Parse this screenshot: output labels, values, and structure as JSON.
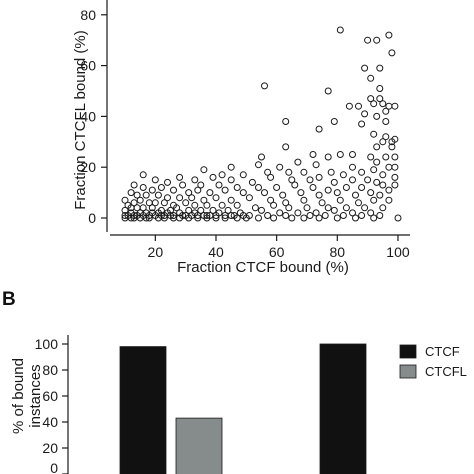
{
  "panel_b_letter": "B",
  "colors": {
    "ctcf": "#111111",
    "ctcfl": "#858c8b",
    "axis": "#1a1a1a",
    "marker_stroke": "#1a1a1a"
  },
  "chart_data": [
    {
      "type": "scatter",
      "xlabel": "Fraction CTCF bound (%)",
      "ylabel": "Fraction CTCFL bound (%)",
      "xlim": [
        8,
        100
      ],
      "ylim": [
        0,
        87
      ],
      "xticks": [
        20,
        40,
        60,
        80,
        100
      ],
      "yticks": [
        0,
        20,
        40,
        60,
        80
      ],
      "marker": "open-circle",
      "points": [
        [
          81,
          74
        ],
        [
          90,
          70
        ],
        [
          93,
          70
        ],
        [
          97,
          72
        ],
        [
          98,
          65
        ],
        [
          94,
          59
        ],
        [
          89,
          59
        ],
        [
          91,
          55
        ],
        [
          94,
          51
        ],
        [
          77,
          50
        ],
        [
          56,
          52
        ],
        [
          91,
          47
        ],
        [
          94,
          47
        ],
        [
          92,
          45
        ],
        [
          95,
          45
        ],
        [
          97,
          44
        ],
        [
          99,
          44
        ],
        [
          84,
          44
        ],
        [
          87,
          44
        ],
        [
          89,
          41
        ],
        [
          93,
          40
        ],
        [
          96,
          42
        ],
        [
          63,
          38
        ],
        [
          79,
          38
        ],
        [
          88,
          37
        ],
        [
          96,
          38
        ],
        [
          74,
          35
        ],
        [
          92,
          33
        ],
        [
          96,
          32
        ],
        [
          95,
          30
        ],
        [
          98,
          30
        ],
        [
          99,
          31
        ],
        [
          93,
          28
        ],
        [
          98,
          28
        ],
        [
          63,
          28
        ],
        [
          72,
          25
        ],
        [
          77,
          24
        ],
        [
          81,
          25
        ],
        [
          85,
          25
        ],
        [
          91,
          24
        ],
        [
          93,
          22
        ],
        [
          96,
          24
        ],
        [
          99,
          24
        ],
        [
          55,
          24
        ],
        [
          67,
          22
        ],
        [
          73,
          21
        ],
        [
          85,
          20
        ],
        [
          97,
          20
        ],
        [
          99,
          20
        ],
        [
          45,
          20
        ],
        [
          54,
          21
        ],
        [
          61,
          20
        ],
        [
          78,
          18
        ],
        [
          88,
          18
        ],
        [
          92,
          19
        ],
        [
          95,
          17
        ],
        [
          36,
          19
        ],
        [
          42,
          17
        ],
        [
          49,
          17
        ],
        [
          57,
          18
        ],
        [
          64,
          18
        ],
        [
          69,
          18
        ],
        [
          74,
          16
        ],
        [
          82,
          17
        ],
        [
          99,
          16
        ],
        [
          99,
          13
        ],
        [
          28,
          16
        ],
        [
          33,
          15
        ],
        [
          39,
          16
        ],
        [
          45,
          15
        ],
        [
          52,
          14
        ],
        [
          58,
          16
        ],
        [
          65,
          15
        ],
        [
          71,
          15
        ],
        [
          79,
          14
        ],
        [
          85,
          15
        ],
        [
          90,
          15
        ],
        [
          93,
          14
        ],
        [
          16,
          17
        ],
        [
          20,
          15
        ],
        [
          24,
          14
        ],
        [
          29,
          13
        ],
        [
          35,
          13
        ],
        [
          41,
          13
        ],
        [
          47,
          12
        ],
        [
          54,
          12
        ],
        [
          60,
          12
        ],
        [
          66,
          13
        ],
        [
          72,
          12
        ],
        [
          77,
          11
        ],
        [
          83,
          12
        ],
        [
          88,
          12
        ],
        [
          95,
          13
        ],
        [
          97,
          11
        ],
        [
          13,
          13
        ],
        [
          16,
          12
        ],
        [
          19,
          11
        ],
        [
          22,
          12
        ],
        [
          26,
          11
        ],
        [
          31,
          10
        ],
        [
          34,
          11
        ],
        [
          38,
          10
        ],
        [
          43,
          11
        ],
        [
          49,
          10
        ],
        [
          56,
          10
        ],
        [
          62,
          9
        ],
        [
          68,
          10
        ],
        [
          74,
          9
        ],
        [
          80,
          10
        ],
        [
          86,
          9
        ],
        [
          91,
          10
        ],
        [
          94,
          9
        ],
        [
          12,
          10
        ],
        [
          14,
          9
        ],
        [
          17,
          9
        ],
        [
          21,
          9
        ],
        [
          24,
          8
        ],
        [
          28,
          8
        ],
        [
          32,
          8
        ],
        [
          36,
          7
        ],
        [
          40,
          8
        ],
        [
          45,
          7
        ],
        [
          51,
          8
        ],
        [
          58,
          7
        ],
        [
          63,
          6
        ],
        [
          69,
          7
        ],
        [
          75,
          6
        ],
        [
          81,
          7
        ],
        [
          87,
          6
        ],
        [
          92,
          7
        ],
        [
          97,
          7
        ],
        [
          10,
          7
        ],
        [
          13,
          6
        ],
        [
          15,
          7
        ],
        [
          18,
          6
        ],
        [
          20,
          6
        ],
        [
          23,
          6
        ],
        [
          26,
          5
        ],
        [
          30,
          6
        ],
        [
          33,
          5
        ],
        [
          37,
          5
        ],
        [
          42,
          5
        ],
        [
          47,
          5
        ],
        [
          53,
          4
        ],
        [
          59,
          5
        ],
        [
          64,
          4
        ],
        [
          70,
          4
        ],
        [
          77,
          4
        ],
        [
          83,
          4
        ],
        [
          89,
          4
        ],
        [
          95,
          4
        ],
        [
          11,
          5
        ],
        [
          12,
          4
        ],
        [
          14,
          4
        ],
        [
          16,
          4
        ],
        [
          19,
          4
        ],
        [
          22,
          3
        ],
        [
          25,
          3
        ],
        [
          27,
          4
        ],
        [
          31,
          3
        ],
        [
          35,
          3
        ],
        [
          39,
          3
        ],
        [
          44,
          3
        ],
        [
          48,
          2
        ],
        [
          55,
          3
        ],
        [
          61,
          2
        ],
        [
          67,
          2
        ],
        [
          73,
          2
        ],
        [
          79,
          3
        ],
        [
          85,
          2
        ],
        [
          91,
          2
        ],
        [
          10,
          3
        ],
        [
          12,
          2
        ],
        [
          15,
          2
        ],
        [
          17,
          2
        ],
        [
          19,
          2
        ],
        [
          21,
          2
        ],
        [
          24,
          2
        ],
        [
          28,
          2
        ],
        [
          30,
          1
        ],
        [
          33,
          2
        ],
        [
          37,
          1
        ],
        [
          41,
          2
        ],
        [
          46,
          1
        ],
        [
          51,
          1
        ],
        [
          57,
          1
        ],
        [
          63,
          1
        ],
        [
          71,
          1
        ],
        [
          76,
          1
        ],
        [
          82,
          1
        ],
        [
          88,
          1
        ],
        [
          94,
          1
        ],
        [
          100,
          0
        ],
        [
          10,
          1
        ],
        [
          11,
          1
        ],
        [
          13,
          1
        ],
        [
          14,
          1
        ],
        [
          16,
          1
        ],
        [
          18,
          1
        ],
        [
          20,
          1
        ],
        [
          22,
          1
        ],
        [
          23,
          1
        ],
        [
          25,
          1
        ],
        [
          26,
          1
        ],
        [
          29,
          1
        ],
        [
          32,
          1
        ],
        [
          34,
          1
        ],
        [
          36,
          1
        ],
        [
          38,
          1
        ],
        [
          40,
          1
        ],
        [
          43,
          1
        ],
        [
          45,
          1
        ],
        [
          49,
          1
        ],
        [
          10,
          0
        ],
        [
          12,
          0
        ],
        [
          13,
          0
        ],
        [
          15,
          0
        ],
        [
          17,
          0
        ],
        [
          18,
          0
        ],
        [
          21,
          0
        ],
        [
          23,
          0
        ],
        [
          26,
          0
        ],
        [
          28,
          0
        ],
        [
          31,
          0
        ],
        [
          34,
          0
        ],
        [
          37,
          0
        ],
        [
          40,
          0
        ],
        [
          43,
          0
        ],
        [
          47,
          0
        ],
        [
          50,
          0
        ],
        [
          54,
          0
        ],
        [
          59,
          0
        ],
        [
          65,
          0
        ],
        [
          69,
          0
        ],
        [
          74,
          0
        ],
        [
          80,
          0
        ],
        [
          86,
          0
        ],
        [
          92,
          0
        ]
      ]
    },
    {
      "type": "bar",
      "ylabel_lines": [
        "% of bound",
        "instances"
      ],
      "ylim": [
        0,
        100
      ],
      "yticks": [
        0,
        20,
        40,
        60,
        80,
        100
      ],
      "groups": 2,
      "series": [
        {
          "name": "CTCF",
          "values": [
            98,
            100
          ]
        },
        {
          "name": "CTCFL",
          "values": [
            43,
            null
          ]
        }
      ],
      "legend": "right"
    }
  ]
}
